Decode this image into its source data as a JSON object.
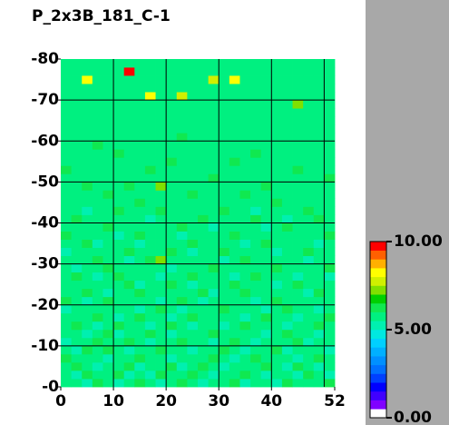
{
  "chart_data": {
    "type": "heatmap",
    "title": "P_2x3B_181_C-1",
    "xlim": [
      0,
      52
    ],
    "ylim": [
      0,
      80
    ],
    "xticks": [
      0,
      10,
      20,
      30,
      40,
      52
    ],
    "yticks": [
      {
        "value": 0,
        "label": "-0"
      },
      {
        "value": 10,
        "label": "-10"
      },
      {
        "value": 20,
        "label": "-20"
      },
      {
        "value": 30,
        "label": "-30"
      },
      {
        "value": 40,
        "label": "-40"
      },
      {
        "value": 50,
        "label": "-50"
      },
      {
        "value": 60,
        "label": "-60"
      },
      {
        "value": 70,
        "label": "-70"
      },
      {
        "value": 80,
        "label": "-80"
      }
    ],
    "xgrid": [
      10,
      20,
      30,
      40,
      50
    ],
    "ygrid": [
      10,
      20,
      30,
      40,
      50,
      60,
      70
    ],
    "grid_color": "#000000",
    "clim": [
      0,
      10
    ],
    "cticks": [
      {
        "value": 0,
        "label": "0.00"
      },
      {
        "value": 5,
        "label": "5.00"
      },
      {
        "value": 10,
        "label": "10.00"
      }
    ],
    "colorscale": [
      "#ffffff",
      "#8000ff",
      "#4000ff",
      "#0000ff",
      "#0040ff",
      "#0070ff",
      "#0090ff",
      "#00b0ff",
      "#00d0ff",
      "#00e8e0",
      "#00f0b0",
      "#00f080",
      "#10e850",
      "#00d000",
      "#80e000",
      "#d0f000",
      "#ffff00",
      "#ffb000",
      "#ff6000",
      "#ff0000"
    ],
    "z": [
      [
        5.6,
        5.9,
        5.4,
        6.1,
        5.7,
        5.2,
        5.8,
        6.0,
        5.5,
        5.3,
        5.9,
        6.2,
        5.6,
        5.1,
        5.8,
        5.7,
        6.0,
        5.4,
        5.9,
        5.6,
        5.2,
        6.1,
        5.8,
        5.5,
        5.7,
        6.0
      ],
      [
        5.8,
        5.3,
        6.0,
        5.6,
        5.9,
        6.2,
        5.4,
        5.7,
        5.1,
        6.0,
        5.5,
        5.8,
        6.1,
        5.6,
        5.3,
        5.9,
        5.5,
        6.2,
        5.7,
        5.0,
        5.9,
        5.6,
        5.4,
        6.0,
        5.8,
        5.3
      ],
      [
        5.5,
        6.1,
        5.7,
        5.2,
        5.8,
        5.6,
        6.0,
        5.3,
        5.9,
        5.7,
        6.1,
        5.4,
        5.8,
        6.0,
        5.6,
        5.2,
        5.9,
        5.7,
        5.5,
        6.1,
        5.8,
        5.3,
        6.0,
        5.6,
        5.4,
        5.9
      ],
      [
        6.0,
        5.6,
        5.8,
        5.9,
        5.3,
        5.7,
        5.5,
        6.2,
        5.8,
        5.6,
        5.2,
        5.9,
        5.7,
        5.5,
        6.1,
        5.8,
        5.4,
        5.6,
        6.0,
        5.7,
        5.5,
        5.9,
        5.2,
        5.8,
        6.1,
        5.6
      ],
      [
        5.7,
        5.4,
        6.1,
        5.5,
        6.0,
        5.8,
        5.2,
        5.9,
        5.6,
        6.1,
        5.8,
        5.5,
        5.3,
        5.9,
        5.7,
        6.0,
        5.6,
        5.1,
        5.8,
        5.9,
        6.2,
        5.4,
        5.7,
        5.5,
        5.8,
        5.2
      ],
      [
        5.3,
        5.8,
        5.6,
        6.0,
        5.5,
        5.9,
        6.1,
        5.6,
        5.4,
        5.7,
        5.9,
        6.0,
        5.6,
        5.8,
        5.2,
        5.5,
        6.1,
        5.8,
        5.4,
        5.6,
        5.9,
        5.7,
        6.0,
        5.3,
        5.6,
        5.9
      ],
      [
        5.9,
        5.6,
        5.2,
        5.8,
        6.1,
        5.4,
        5.7,
        5.5,
        6.0,
        5.8,
        5.3,
        5.6,
        5.9,
        5.7,
        6.0,
        5.8,
        5.5,
        5.9,
        5.7,
        5.2,
        5.6,
        6.1,
        5.8,
        5.9,
        5.4,
        5.7
      ],
      [
        5.6,
        6.0,
        5.8,
        5.4,
        5.7,
        6.2,
        5.9,
        5.6,
        5.3,
        5.5,
        6.0,
        5.8,
        5.2,
        5.6,
        5.9,
        5.4,
        5.7,
        6.0,
        5.8,
        5.6,
        5.5,
        5.3,
        5.9,
        5.7,
        6.0,
        5.5
      ],
      [
        5.8,
        5.5,
        5.9,
        6.1,
        5.6,
        5.3,
        5.8,
        6.0,
        5.7,
        5.9,
        5.4,
        5.7,
        6.1,
        5.5,
        5.8,
        5.6,
        5.9,
        5.3,
        5.6,
        6.0,
        5.8,
        5.7,
        5.4,
        5.6,
        5.9,
        6.1
      ],
      [
        5.4,
        5.9,
        5.7,
        5.5,
        5.9,
        5.8,
        5.5,
        5.2,
        5.9,
        6.0,
        5.7,
        5.3,
        5.8,
        5.9,
        5.6,
        6.1,
        5.5,
        5.8,
        5.9,
        5.4,
        5.7,
        6.0,
        5.6,
        5.8,
        5.3,
        5.7
      ],
      [
        6.1,
        5.7,
        5.4,
        5.8,
        6.0,
        5.6,
        5.9,
        5.7,
        5.5,
        5.3,
        5.9,
        6.0,
        5.6,
        5.4,
        5.7,
        5.9,
        5.8,
        5.6,
        5.3,
        5.8,
        6.1,
        5.5,
        5.9,
        5.7,
        5.6,
        5.8
      ],
      [
        5.7,
        5.5,
        6.0,
        5.6,
        5.3,
        5.9,
        5.6,
        6.1,
        5.8,
        5.6,
        5.5,
        5.8,
        5.9,
        6.0,
        5.2,
        5.7,
        5.6,
        6.0,
        5.8,
        5.5,
        5.6,
        5.9,
        5.7,
        5.4,
        6.0,
        5.6
      ],
      [
        5.5,
        5.8,
        5.6,
        5.9,
        5.7,
        5.5,
        6.0,
        5.4,
        5.6,
        5.9,
        6.1,
        5.7,
        5.4,
        5.8,
        5.9,
        5.5,
        6.1,
        5.7,
        5.6,
        5.9,
        5.3,
        5.8,
        6.0,
        5.6,
        5.7,
        5.9
      ],
      [
        5.9,
        6.2,
        5.7,
        5.3,
        5.8,
        6.0,
        5.5,
        5.8,
        5.7,
        5.4,
        5.6,
        5.9,
        6.0,
        5.7,
        5.5,
        5.8,
        5.4,
        5.9,
        6.1,
        5.6,
        5.8,
        5.5,
        5.3,
        5.9,
        5.8,
        5.4
      ],
      [
        5.6,
        5.4,
        5.9,
        5.7,
        6.1,
        5.6,
        5.8,
        5.5,
        5.9,
        5.8,
        5.3,
        5.6,
        5.8,
        5.5,
        6.0,
        5.6,
        5.9,
        5.5,
        5.7,
        5.8,
        6.0,
        5.6,
        5.9,
        5.7,
        5.5,
        6.0
      ],
      [
        5.8,
        5.7,
        5.5,
        6.0,
        5.6,
        5.9,
        5.4,
        5.7,
        6.0,
        7.2,
        5.8,
        5.5,
        5.7,
        5.9,
        5.6,
        5.4,
        5.8,
        6.0,
        5.6,
        5.5,
        5.7,
        5.9,
        5.8,
        5.4,
        5.9,
        5.7
      ],
      [
        5.3,
        5.9,
        5.8,
        5.6,
        5.5,
        5.7,
        6.1,
        5.9,
        5.6,
        5.5,
        6.0,
        5.8,
        5.4,
        5.6,
        5.8,
        6.0,
        5.7,
        5.6,
        5.9,
        5.8,
        5.4,
        5.7,
        5.6,
        6.0,
        5.8,
        5.5
      ],
      [
        5.7,
        5.6,
        6.1,
        5.4,
        5.9,
        5.8,
        5.6,
        5.3,
        5.8,
        5.9,
        5.6,
        5.7,
        6.0,
        5.8,
        5.5,
        5.9,
        5.6,
        5.4,
        5.8,
        6.1,
        5.7,
        5.5,
        5.9,
        5.6,
        5.4,
        5.8
      ],
      [
        6.0,
        5.5,
        5.7,
        5.9,
        5.6,
        5.4,
        5.8,
        6.0,
        5.7,
        5.6,
        5.9,
        5.4,
        5.8,
        5.6,
        5.9,
        5.7,
        6.0,
        5.8,
        5.5,
        5.6,
        5.9,
        5.8,
        5.6,
        5.5,
        5.7,
        6.0
      ],
      [
        5.5,
        5.8,
        5.6,
        5.7,
        6.0,
        5.9,
        5.5,
        5.7,
        5.9,
        5.8,
        5.5,
        6.0,
        5.6,
        5.7,
        5.4,
        5.8,
        5.6,
        5.9,
        5.7,
        5.4,
        5.8,
        6.0,
        5.7,
        5.9,
        5.6,
        5.5
      ],
      [
        5.8,
        6.0,
        5.9,
        5.5,
        5.7,
        5.6,
        5.9,
        5.6,
        5.4,
        5.7,
        5.8,
        5.6,
        5.9,
        6.1,
        5.7,
        5.6,
        5.5,
        5.7,
        6.0,
        5.8,
        5.6,
        5.4,
        5.8,
        5.7,
        6.0,
        5.8
      ],
      [
        5.6,
        5.7,
        5.4,
        5.9,
        5.8,
        6.0,
        5.7,
        5.8,
        5.6,
        6.0,
        5.5,
        5.9,
        5.7,
        5.5,
        5.9,
        6.0,
        5.8,
        5.6,
        5.4,
        5.9,
        5.7,
        5.8,
        5.5,
        6.0,
        5.6,
        5.7
      ],
      [
        5.9,
        5.5,
        5.8,
        5.6,
        5.5,
        5.7,
        5.9,
        6.0,
        5.8,
        5.6,
        5.9,
        5.7,
        5.5,
        5.8,
        5.6,
        5.7,
        5.9,
        5.5,
        5.8,
        5.6,
        6.0,
        5.9,
        5.7,
        5.5,
        5.8,
        5.9
      ],
      [
        5.7,
        5.9,
        5.6,
        5.8,
        6.0,
        5.5,
        5.6,
        5.7,
        5.9,
        5.5,
        5.7,
        5.8,
        6.0,
        5.6,
        5.8,
        5.9,
        5.6,
        6.0,
        5.7,
        5.5,
        5.8,
        5.6,
        5.9,
        5.8,
        5.6,
        5.5
      ],
      [
        5.5,
        5.6,
        6.0,
        5.7,
        5.6,
        5.8,
        6.0,
        5.5,
        5.6,
        7.4,
        5.8,
        5.6,
        5.7,
        5.9,
        5.5,
        5.6,
        5.8,
        5.7,
        5.9,
        6.0,
        5.6,
        5.7,
        5.8,
        5.6,
        5.9,
        5.7
      ],
      [
        5.8,
        5.7,
        5.5,
        5.9,
        5.7,
        5.6,
        5.8,
        5.9,
        5.7,
        5.8,
        5.6,
        5.9,
        5.5,
        5.7,
        6.0,
        5.8,
        5.5,
        5.9,
        5.6,
        5.7,
        5.9,
        5.5,
        5.6,
        5.8,
        5.7,
        6.0
      ],
      [
        6.0,
        5.8,
        5.7,
        5.6,
        5.9,
        5.7,
        5.5,
        5.8,
        6.0,
        5.6,
        5.9,
        5.7,
        5.8,
        5.6,
        5.7,
        5.9,
        5.7,
        5.6,
        5.8,
        5.9,
        5.5,
        5.8,
        6.0,
        5.7,
        5.5,
        5.8
      ],
      [
        5.6,
        5.9,
        5.8,
        5.7,
        5.5,
        5.9,
        5.7,
        5.6,
        5.8,
        5.7,
        6.0,
        5.5,
        5.9,
        5.8,
        5.6,
        5.5,
        6.0,
        5.8,
        5.7,
        5.6,
        5.8,
        5.9,
        5.6,
        5.9,
        5.8,
        5.6
      ],
      [
        5.7,
        5.6,
        5.9,
        5.8,
        5.6,
        6.0,
        5.8,
        5.7,
        5.5,
        5.9,
        5.6,
        5.8,
        5.6,
        5.7,
        5.9,
        5.8,
        5.6,
        5.7,
        6.0,
        5.8,
        5.7,
        5.6,
        5.8,
        5.5,
        5.9,
        5.7
      ],
      [
        5.9,
        5.7,
        5.6,
        6.0,
        5.8,
        5.5,
        5.9,
        5.8,
        5.7,
        5.6,
        5.8,
        5.7,
        5.9,
        5.5,
        5.8,
        5.6,
        5.9,
        5.8,
        5.5,
        5.7,
        5.9,
        5.8,
        5.7,
        5.6,
        5.7,
        5.9
      ],
      [
        5.6,
        5.8,
        5.7,
        5.5,
        5.9,
        5.8,
        5.6,
        5.9,
        5.8,
        5.7,
        5.5,
        6.0,
        5.7,
        5.8,
        5.6,
        5.9,
        5.7,
        5.5,
        5.8,
        5.9,
        5.6,
        5.7,
        5.9,
        5.8,
        5.6,
        5.8
      ],
      [
        5.8,
        5.9,
        5.6,
        5.7,
        5.7,
        5.6,
        5.9,
        5.5,
        5.7,
        5.8,
        5.9,
        5.6,
        5.8,
        5.7,
        5.9,
        5.6,
        5.8,
        5.9,
        5.7,
        5.6,
        5.8,
        5.5,
        5.7,
        5.9,
        5.8,
        5.6
      ],
      [
        5.7,
        5.5,
        5.8,
        5.9,
        5.6,
        5.8,
        5.7,
        5.8,
        5.9,
        5.6,
        5.7,
        5.8,
        5.6,
        5.9,
        5.7,
        5.8,
        5.6,
        5.7,
        5.9,
        5.8,
        5.7,
        5.9,
        5.6,
        5.7,
        5.5,
        5.8
      ],
      [
        5.9,
        5.8,
        5.7,
        5.6,
        5.8,
        5.9,
        5.6,
        5.7,
        5.8,
        5.9,
        5.6,
        5.7,
        5.9,
        5.6,
        5.8,
        5.7,
        5.9,
        5.6,
        5.7,
        5.8,
        5.6,
        5.8,
        5.9,
        5.6,
        5.8,
        5.7
      ],
      [
        5.6,
        5.7,
        5.9,
        5.8,
        5.7,
        5.6,
        5.8,
        5.9,
        5.6,
        5.7,
        5.8,
        5.9,
        5.7,
        5.8,
        5.6,
        5.9,
        5.7,
        5.8,
        5.6,
        5.9,
        5.8,
        5.7,
        7.4,
        5.8,
        5.7,
        5.9
      ],
      [
        5.8,
        5.6,
        5.7,
        5.9,
        5.8,
        5.7,
        5.9,
        5.6,
        8.0,
        5.8,
        5.7,
        7.8,
        5.6,
        5.9,
        5.7,
        5.6,
        5.8,
        5.9,
        5.7,
        5.6,
        5.9,
        5.8,
        5.6,
        5.7,
        5.9,
        5.6
      ],
      [
        5.7,
        5.9,
        5.8,
        5.6,
        5.7,
        5.9,
        5.7,
        5.8,
        5.7,
        5.6,
        5.9,
        5.8,
        5.7,
        5.6,
        5.9,
        5.8,
        5.7,
        5.6,
        5.8,
        5.7,
        5.6,
        5.9,
        5.8,
        5.9,
        5.6,
        5.8
      ],
      [
        5.9,
        5.7,
        8.2,
        5.7,
        5.9,
        5.8,
        5.6,
        5.7,
        5.9,
        5.8,
        5.6,
        5.7,
        5.8,
        5.9,
        7.6,
        5.7,
        8.0,
        5.8,
        5.9,
        5.7,
        5.8,
        5.6,
        5.7,
        5.8,
        5.9,
        5.7
      ],
      [
        5.6,
        5.8,
        5.9,
        5.8,
        5.6,
        5.7,
        9.6,
        5.9,
        5.8,
        5.7,
        5.8,
        5.6,
        5.9,
        5.7,
        5.8,
        5.9,
        5.6,
        5.7,
        5.6,
        5.8,
        5.9,
        5.7,
        5.8,
        5.6,
        5.7,
        5.8
      ],
      [
        5.8,
        5.6,
        5.7,
        5.9,
        5.8,
        5.6,
        5.8,
        5.7,
        5.6,
        5.9,
        5.7,
        5.8,
        5.6,
        5.8,
        5.7,
        5.6,
        5.9,
        5.8,
        5.7,
        5.9,
        5.6,
        5.8,
        5.7,
        5.9,
        5.8,
        5.6
      ]
    ]
  }
}
